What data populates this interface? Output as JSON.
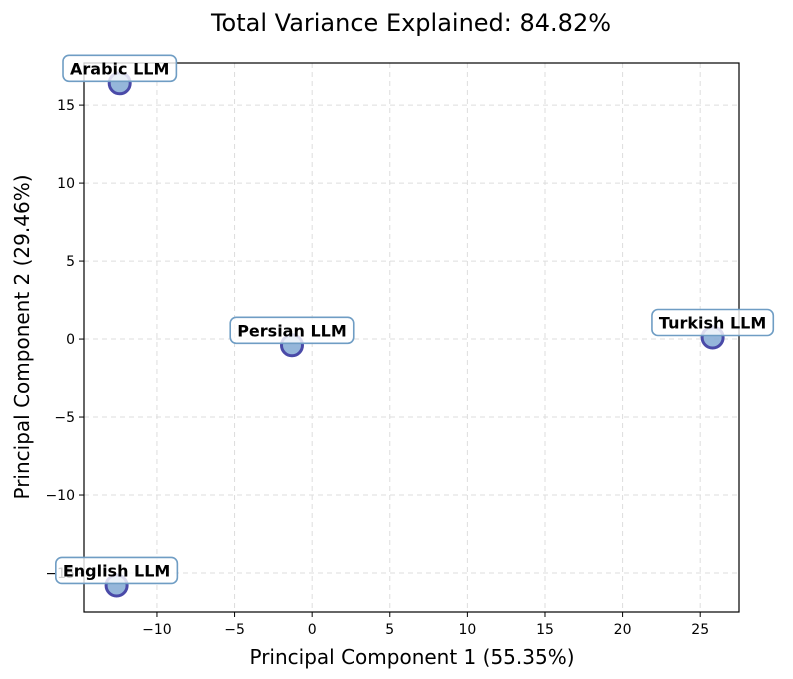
{
  "chart_data": {
    "type": "scatter",
    "title": "Total Variance Explained: 84.82%",
    "xlabel": "Principal Component 1 (55.35%)",
    "ylabel": "Principal Component 2 (29.46%)",
    "xlim": [
      -14.7,
      27.5
    ],
    "ylim": [
      -17.5,
      17.7
    ],
    "xticks": [
      -10,
      -5,
      0,
      5,
      10,
      15,
      20,
      25
    ],
    "yticks": [
      -15,
      -10,
      -5,
      0,
      5,
      10,
      15
    ],
    "xtick_labels": [
      "−10",
      "−5",
      "0",
      "5",
      "10",
      "15",
      "20",
      "25"
    ],
    "ytick_labels": [
      "−15",
      "−10",
      "−5",
      "0",
      "5",
      "10",
      "15"
    ],
    "grid": true,
    "points": [
      {
        "label": "Arabic LLM",
        "x": -12.4,
        "y": 16.4
      },
      {
        "label": "Persian LLM",
        "x": -1.3,
        "y": -0.4
      },
      {
        "label": "Turkish LLM",
        "x": 25.8,
        "y": 0.1
      },
      {
        "label": "English LLM",
        "x": -12.6,
        "y": -15.8
      }
    ],
    "colors": {
      "marker_fill": "#8aaed6",
      "marker_edge": "#4a4aa8",
      "label_box_edge": "#6f9dc4",
      "grid": "#dddddd"
    }
  }
}
